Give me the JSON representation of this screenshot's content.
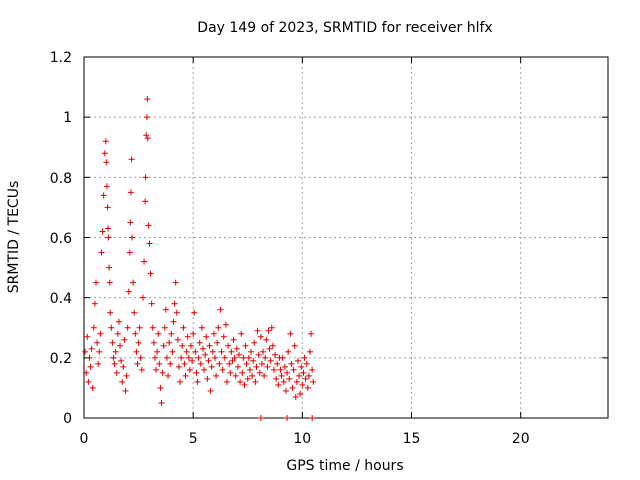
{
  "chart_data": {
    "type": "scatter",
    "title": "Day 149 of 2023, SRMTID for receiver hlfx",
    "xlabel": "GPS time / hours",
    "ylabel": "SRMTID / TECUs",
    "xlim": [
      0,
      24
    ],
    "ylim": [
      0,
      1.2
    ],
    "xticks": [
      0,
      5,
      10,
      15,
      20
    ],
    "xtick_labels": [
      "0",
      "5",
      "10",
      "15",
      "20"
    ],
    "yticks": [
      0,
      0.2,
      0.4,
      0.6,
      0.8,
      1,
      1.2
    ],
    "ytick_labels": [
      "0",
      "0.2",
      "0.4",
      "0.6",
      "0.8",
      "1",
      "1.2"
    ],
    "grid": true,
    "marker": "+",
    "color": "#e00000",
    "series": [
      {
        "name": "SRMTID",
        "points": [
          [
            0.05,
            0.22
          ],
          [
            0.1,
            0.15
          ],
          [
            0.15,
            0.27
          ],
          [
            0.2,
            0.12
          ],
          [
            0.25,
            0.2
          ],
          [
            0.3,
            0.17
          ],
          [
            0.35,
            0.23
          ],
          [
            0.4,
            0.1
          ],
          [
            0.45,
            0.3
          ],
          [
            0.5,
            0.38
          ],
          [
            0.55,
            0.45
          ],
          [
            0.6,
            0.25
          ],
          [
            0.65,
            0.18
          ],
          [
            0.7,
            0.22
          ],
          [
            0.75,
            0.28
          ],
          [
            0.8,
            0.55
          ],
          [
            0.85,
            0.62
          ],
          [
            0.9,
            0.74
          ],
          [
            0.95,
            0.88
          ],
          [
            1.0,
            0.92
          ],
          [
            1.02,
            0.85
          ],
          [
            1.05,
            0.77
          ],
          [
            1.08,
            0.7
          ],
          [
            1.1,
            0.63
          ],
          [
            1.12,
            0.6
          ],
          [
            1.15,
            0.5
          ],
          [
            1.18,
            0.45
          ],
          [
            1.2,
            0.35
          ],
          [
            1.25,
            0.3
          ],
          [
            1.3,
            0.25
          ],
          [
            1.35,
            0.2
          ],
          [
            1.4,
            0.18
          ],
          [
            1.45,
            0.22
          ],
          [
            1.5,
            0.15
          ],
          [
            1.55,
            0.28
          ],
          [
            1.6,
            0.32
          ],
          [
            1.65,
            0.24
          ],
          [
            1.7,
            0.19
          ],
          [
            1.75,
            0.12
          ],
          [
            1.8,
            0.17
          ],
          [
            1.85,
            0.26
          ],
          [
            1.9,
            0.09
          ],
          [
            1.95,
            0.14
          ],
          [
            2.0,
            0.3
          ],
          [
            2.05,
            0.42
          ],
          [
            2.1,
            0.55
          ],
          [
            2.12,
            0.65
          ],
          [
            2.15,
            0.75
          ],
          [
            2.18,
            0.86
          ],
          [
            2.2,
            0.6
          ],
          [
            2.25,
            0.45
          ],
          [
            2.3,
            0.35
          ],
          [
            2.35,
            0.28
          ],
          [
            2.4,
            0.22
          ],
          [
            2.45,
            0.18
          ],
          [
            2.5,
            0.25
          ],
          [
            2.55,
            0.3
          ],
          [
            2.6,
            0.2
          ],
          [
            2.65,
            0.16
          ],
          [
            2.7,
            0.4
          ],
          [
            2.75,
            0.52
          ],
          [
            2.8,
            0.72
          ],
          [
            2.82,
            0.8
          ],
          [
            2.85,
            0.94
          ],
          [
            2.88,
            1.0
          ],
          [
            2.9,
            1.06
          ],
          [
            2.92,
            0.93
          ],
          [
            2.95,
            0.64
          ],
          [
            3.0,
            0.58
          ],
          [
            3.05,
            0.48
          ],
          [
            3.1,
            0.38
          ],
          [
            3.15,
            0.3
          ],
          [
            3.2,
            0.25
          ],
          [
            3.25,
            0.2
          ],
          [
            3.3,
            0.16
          ],
          [
            3.35,
            0.22
          ],
          [
            3.4,
            0.28
          ],
          [
            3.45,
            0.18
          ],
          [
            3.5,
            0.1
          ],
          [
            3.55,
            0.05
          ],
          [
            3.6,
            0.15
          ],
          [
            3.65,
            0.24
          ],
          [
            3.7,
            0.3
          ],
          [
            3.75,
            0.36
          ],
          [
            3.8,
            0.2
          ],
          [
            3.85,
            0.14
          ],
          [
            3.9,
            0.25
          ],
          [
            3.95,
            0.18
          ],
          [
            4.0,
            0.28
          ],
          [
            4.05,
            0.22
          ],
          [
            4.1,
            0.32
          ],
          [
            4.15,
            0.38
          ],
          [
            4.2,
            0.45
          ],
          [
            4.25,
            0.35
          ],
          [
            4.3,
            0.26
          ],
          [
            4.35,
            0.17
          ],
          [
            4.4,
            0.12
          ],
          [
            4.45,
            0.2
          ],
          [
            4.5,
            0.24
          ],
          [
            4.55,
            0.3
          ],
          [
            4.6,
            0.18
          ],
          [
            4.65,
            0.14
          ],
          [
            4.7,
            0.22
          ],
          [
            4.75,
            0.27
          ],
          [
            4.8,
            0.2
          ],
          [
            4.85,
            0.16
          ],
          [
            4.9,
            0.24
          ],
          [
            4.95,
            0.19
          ],
          [
            5.0,
            0.28
          ],
          [
            5.05,
            0.35
          ],
          [
            5.1,
            0.22
          ],
          [
            5.15,
            0.15
          ],
          [
            5.2,
            0.12
          ],
          [
            5.25,
            0.2
          ],
          [
            5.3,
            0.25
          ],
          [
            5.35,
            0.18
          ],
          [
            5.4,
            0.3
          ],
          [
            5.45,
            0.23
          ],
          [
            5.5,
            0.16
          ],
          [
            5.55,
            0.21
          ],
          [
            5.6,
            0.27
          ],
          [
            5.65,
            0.13
          ],
          [
            5.7,
            0.19
          ],
          [
            5.75,
            0.24
          ],
          [
            5.8,
            0.09
          ],
          [
            5.85,
            0.17
          ],
          [
            5.9,
            0.22
          ],
          [
            5.95,
            0.28
          ],
          [
            6.0,
            0.2
          ],
          [
            6.05,
            0.14
          ],
          [
            6.1,
            0.25
          ],
          [
            6.15,
            0.3
          ],
          [
            6.2,
            0.18
          ],
          [
            6.25,
            0.36
          ],
          [
            6.3,
            0.22
          ],
          [
            6.35,
            0.16
          ],
          [
            6.4,
            0.27
          ],
          [
            6.45,
            0.2
          ],
          [
            6.5,
            0.31
          ],
          [
            6.55,
            0.12
          ],
          [
            6.6,
            0.24
          ],
          [
            6.65,
            0.18
          ],
          [
            6.7,
            0.15
          ],
          [
            6.75,
            0.22
          ],
          [
            6.8,
            0.19
          ],
          [
            6.85,
            0.26
          ],
          [
            6.9,
            0.2
          ],
          [
            6.95,
            0.14
          ],
          [
            7.0,
            0.23
          ],
          [
            7.05,
            0.17
          ],
          [
            7.1,
            0.21
          ],
          [
            7.15,
            0.12
          ],
          [
            7.2,
            0.28
          ],
          [
            7.25,
            0.15
          ],
          [
            7.3,
            0.2
          ],
          [
            7.35,
            0.11
          ],
          [
            7.4,
            0.24
          ],
          [
            7.45,
            0.18
          ],
          [
            7.5,
            0.13
          ],
          [
            7.55,
            0.2
          ],
          [
            7.6,
            0.16
          ],
          [
            7.65,
            0.22
          ],
          [
            7.7,
            0.14
          ],
          [
            7.75,
            0.19
          ],
          [
            7.8,
            0.25
          ],
          [
            7.85,
            0.12
          ],
          [
            7.9,
            0.17
          ],
          [
            7.95,
            0.29
          ],
          [
            8.0,
            0.21
          ],
          [
            8.05,
            0.15
          ],
          [
            8.1,
            0.27
          ],
          [
            8.15,
            0.18
          ],
          [
            8.2,
            0.22
          ],
          [
            8.25,
            0.14
          ],
          [
            8.3,
            0.2
          ],
          [
            8.35,
            0.26
          ],
          [
            8.4,
            0.17
          ],
          [
            8.45,
            0.29
          ],
          [
            8.5,
            0.23
          ],
          [
            8.55,
            0.19
          ],
          [
            8.6,
            0.3
          ],
          [
            8.65,
            0.24
          ],
          [
            8.7,
            0.16
          ],
          [
            8.75,
            0.21
          ],
          [
            8.8,
            0.13
          ],
          [
            8.85,
            0.18
          ],
          [
            8.9,
            0.11
          ],
          [
            8.95,
            0.2
          ],
          [
            9.0,
            0.16
          ],
          [
            9.05,
            0.14
          ],
          [
            9.1,
            0.2
          ],
          [
            9.15,
            0.12
          ],
          [
            9.2,
            0.17
          ],
          [
            9.25,
            0.09
          ],
          [
            9.3,
            0.15
          ],
          [
            9.35,
            0.22
          ],
          [
            9.4,
            0.13
          ],
          [
            9.45,
            0.28
          ],
          [
            9.5,
            0.18
          ],
          [
            9.55,
            0.1
          ],
          [
            9.6,
            0.16
          ],
          [
            9.65,
            0.24
          ],
          [
            9.7,
            0.07
          ],
          [
            9.75,
            0.12
          ],
          [
            9.8,
            0.19
          ],
          [
            9.85,
            0.14
          ],
          [
            9.9,
            0.08
          ],
          [
            9.95,
            0.17
          ],
          [
            10.0,
            0.11
          ],
          [
            10.05,
            0.15
          ],
          [
            10.1,
            0.2
          ],
          [
            10.15,
            0.13
          ],
          [
            10.2,
            0.18
          ],
          [
            10.25,
            0.1
          ],
          [
            10.3,
            0.14
          ],
          [
            10.35,
            0.22
          ],
          [
            10.4,
            0.28
          ],
          [
            10.45,
            0.16
          ],
          [
            10.5,
            0.12
          ],
          [
            8.1,
            0.0
          ],
          [
            9.3,
            0.0
          ],
          [
            10.45,
            0.0
          ]
        ]
      }
    ]
  }
}
